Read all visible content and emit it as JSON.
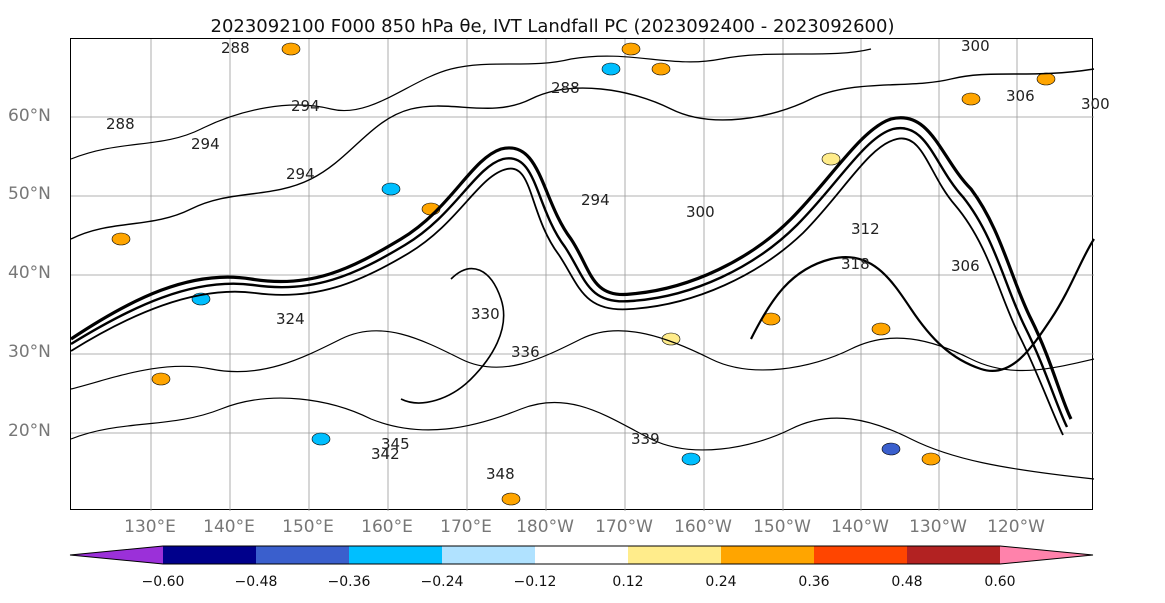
{
  "title": "2023092100 F000 850 hPa θe, IVT Landfall PC (2023092400 - 2023092600)",
  "map": {
    "lat_labels": [
      "60°N",
      "50°N",
      "40°N",
      "30°N",
      "20°N"
    ],
    "lon_labels": [
      "130°E",
      "140°E",
      "150°E",
      "160°E",
      "170°E",
      "180°W",
      "170°W",
      "160°W",
      "150°W",
      "140°W",
      "130°W",
      "120°W"
    ],
    "contour_labels": [
      "288",
      "294",
      "288",
      "294",
      "300",
      "294",
      "300",
      "306",
      "288",
      "294",
      "300",
      "306",
      "312",
      "318",
      "324",
      "330",
      "336",
      "339",
      "342",
      "345",
      "348"
    ],
    "gridlines": true
  },
  "colorbar": {
    "ticks": [
      "−0.60",
      "−0.48",
      "−0.36",
      "−0.24",
      "−0.12",
      "0.12",
      "0.24",
      "0.36",
      "0.48",
      "0.60"
    ],
    "colors": [
      "#9b30d9",
      "#00008b",
      "#3a5fcd",
      "#00bfff",
      "#b0e2ff",
      "#ffffff",
      "#ffec8b",
      "#ffa500",
      "#ff4500",
      "#b22222",
      "#ff82ab"
    ],
    "extend": "both"
  }
}
